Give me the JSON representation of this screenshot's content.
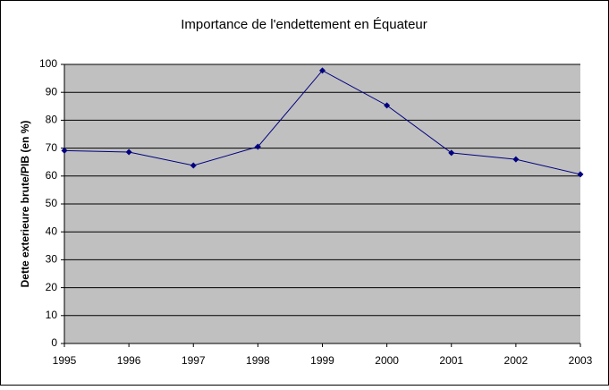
{
  "chart_data": {
    "type": "line",
    "title": "Importance de l'endettement en Équateur",
    "y_label": "Dette exterieure brute/PIB (en %)",
    "x": [
      1995,
      1996,
      1997,
      1998,
      1999,
      2000,
      2001,
      2002,
      2003
    ],
    "series": [
      {
        "name": "Dette exterieure brute/PIB",
        "color": "#000080",
        "values": [
          69.1,
          68.6,
          63.8,
          70.5,
          97.8,
          85.3,
          68.3,
          66.0,
          60.6
        ]
      }
    ],
    "xlim": [
      1995,
      2003
    ],
    "xticks": [
      1995,
      1996,
      1997,
      1998,
      1999,
      2000,
      2001,
      2002,
      2003
    ],
    "ylim": [
      0,
      100
    ],
    "yticks": [
      0,
      10,
      20,
      30,
      40,
      50,
      60,
      70,
      80,
      90,
      100
    ],
    "grid": true,
    "plot_background": "#c0c0c0"
  }
}
